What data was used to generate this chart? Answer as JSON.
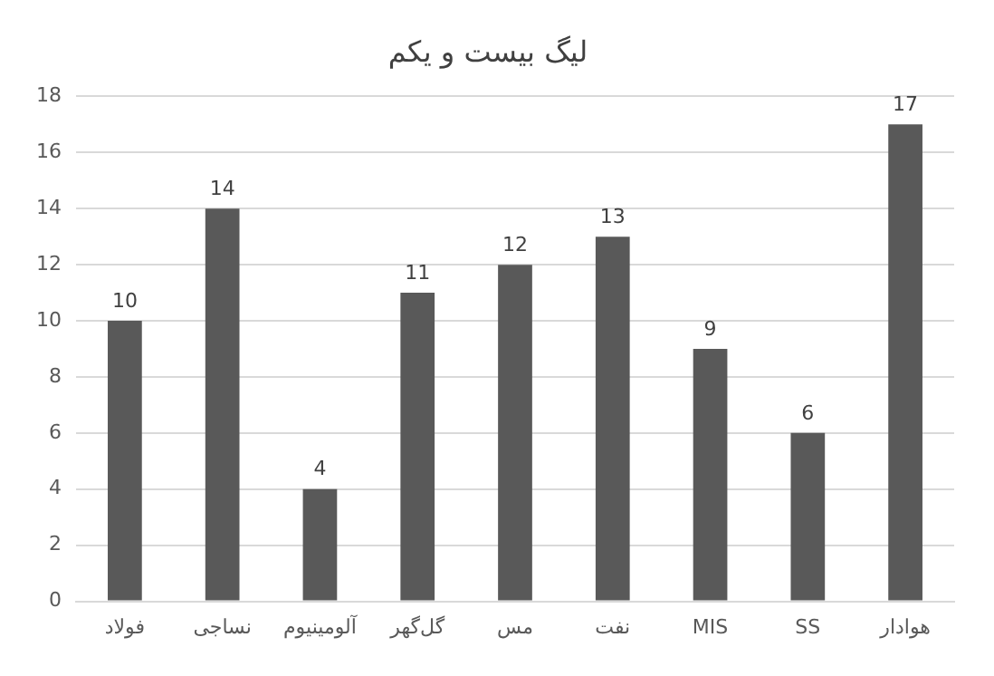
{
  "chart_data": {
    "type": "bar",
    "title": "لیگ بیست و یکم",
    "categories": [
      "فولاد",
      "نساجی",
      "آلومینیوم",
      "گل‌گهر",
      "مس",
      "نفت",
      "MIS",
      "SS",
      "هوادار"
    ],
    "values": [
      10,
      14,
      4,
      11,
      12,
      13,
      9,
      6,
      17
    ],
    "color": "#595959",
    "ylim": [
      0,
      18
    ],
    "yticks": [
      0,
      2,
      4,
      6,
      8,
      10,
      12,
      14,
      16,
      18
    ],
    "grid": "y",
    "data_labels": true
  }
}
